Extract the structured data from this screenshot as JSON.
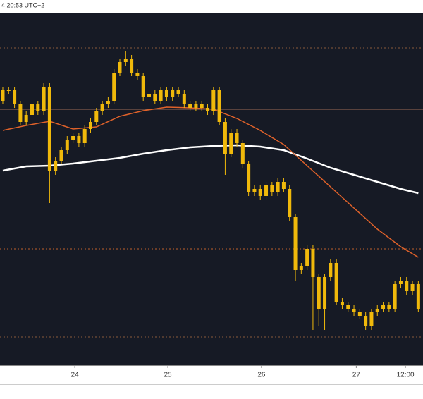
{
  "chart_data": {
    "type": "candlestick",
    "header": "4 20:53 UTC+2",
    "color": "#f0b90b",
    "background": "#161a25",
    "ylim": [
      0,
      100
    ],
    "xlim": [
      -0.48,
      71.8
    ],
    "xticks": [
      {
        "value": 12.3,
        "label": "24"
      },
      {
        "value": 28.2,
        "label": "25"
      },
      {
        "value": 44.2,
        "label": "26"
      },
      {
        "value": 60.4,
        "label": "27"
      },
      {
        "value": 68.8,
        "label": "12:00"
      }
    ],
    "open": [
      75,
      78,
      78,
      74,
      69,
      71,
      74,
      72,
      79,
      55,
      58,
      61,
      64,
      65,
      63,
      67,
      69,
      72,
      74,
      75,
      83,
      86,
      87,
      83,
      82,
      76,
      77,
      75,
      78,
      76,
      78,
      77,
      74,
      73,
      74,
      73,
      72,
      78,
      69,
      60,
      66,
      63,
      57,
      49,
      50,
      48,
      51,
      49,
      52,
      50,
      42,
      27,
      28,
      33,
      25,
      16,
      25,
      29,
      18,
      17,
      16,
      15,
      14,
      11,
      15,
      16,
      17,
      16,
      23,
      24,
      21,
      23
    ],
    "high": [
      79,
      79,
      79,
      75,
      72,
      75,
      75,
      80,
      80,
      59,
      62,
      65,
      66,
      66,
      68,
      70,
      73,
      75,
      76,
      84,
      87,
      89,
      88,
      84,
      83,
      78,
      78,
      79,
      79,
      79,
      79,
      78,
      75,
      75,
      75,
      74,
      79,
      79,
      70,
      67,
      67,
      64,
      58,
      51,
      51,
      52,
      52,
      53,
      53,
      51,
      43,
      29,
      34,
      34,
      26,
      26,
      30,
      30,
      19,
      18,
      17,
      16,
      15,
      16,
      17,
      18,
      18,
      24,
      25,
      25,
      24,
      24
    ],
    "low": [
      74,
      77,
      73,
      68,
      68,
      70,
      71,
      71,
      46,
      54,
      57,
      60,
      63,
      62,
      62,
      66,
      68,
      71,
      73,
      74,
      82,
      85,
      82,
      81,
      75,
      75,
      74,
      74,
      75,
      75,
      76,
      73,
      72,
      72,
      72,
      71,
      71,
      68,
      54,
      59,
      62,
      56,
      48,
      48,
      47,
      47,
      48,
      48,
      49,
      41,
      24,
      26,
      27,
      10,
      11,
      10,
      24,
      17,
      16,
      15,
      14,
      13,
      10,
      10,
      14,
      15,
      15,
      15,
      22,
      20,
      20,
      15
    ],
    "close": [
      78,
      78,
      74,
      69,
      71,
      74,
      72,
      79,
      55,
      58,
      61,
      64,
      65,
      63,
      67,
      69,
      72,
      74,
      75,
      83,
      86,
      87,
      83,
      82,
      76,
      77,
      75,
      78,
      76,
      78,
      77,
      74,
      73,
      74,
      73,
      72,
      78,
      69,
      60,
      66,
      63,
      57,
      49,
      50,
      48,
      51,
      49,
      52,
      50,
      42,
      27,
      28,
      33,
      25,
      16,
      25,
      29,
      18,
      17,
      16,
      15,
      14,
      11,
      15,
      16,
      17,
      16,
      23,
      24,
      21,
      23,
      16
    ],
    "lines": [
      {
        "color": "#ffffff",
        "width": 2.5,
        "x": [
          0,
          4,
          8,
          12,
          16,
          20,
          24,
          28,
          32,
          36,
          40,
          44,
          48,
          52,
          56,
          60,
          64,
          68,
          71
        ],
        "values": [
          55.2,
          56.4,
          56.6,
          57.2,
          58,
          58.8,
          60,
          61,
          61.8,
          62.2,
          62.4,
          62,
          61,
          58.6,
          56,
          54,
          52,
          50,
          48.8
        ]
      },
      {
        "color": "#e0622a",
        "width": 1.5,
        "x": [
          0,
          4,
          8,
          12,
          16,
          20,
          24,
          28,
          32,
          36,
          40,
          44,
          48,
          52,
          56,
          60,
          64,
          68,
          71
        ],
        "values": [
          66.6,
          68,
          69.2,
          67,
          67.6,
          70.6,
          72.2,
          73.2,
          73,
          72.6,
          70,
          66.6,
          62.6,
          56.6,
          50.6,
          44.6,
          38.6,
          33.6,
          30.6
        ]
      }
    ],
    "hlines": [
      {
        "value": 90,
        "color": "#8a5a3a",
        "dash": "2 3"
      },
      {
        "value": 72.6,
        "color": "#9c6a55",
        "dash": ""
      },
      {
        "value": 33,
        "color": "#c0602a",
        "dash": "2 3"
      },
      {
        "value": 8,
        "color": "#8a5a3a",
        "dash": "2 3"
      }
    ]
  }
}
